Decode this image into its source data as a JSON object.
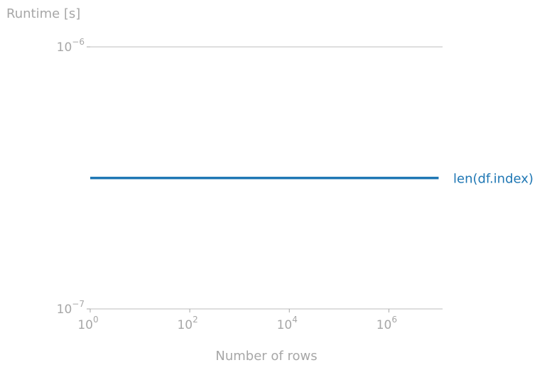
{
  "chart_data": {
    "type": "line",
    "title": "",
    "xlabel": "Number of rows",
    "ylabel": "Runtime [s]",
    "x_scale": "log",
    "y_scale": "log",
    "xlim": [
      1,
      12000000
    ],
    "ylim": [
      1e-07,
      1e-06
    ],
    "grid": "y-major",
    "legend": "inline-right",
    "x_ticks": [
      {
        "value": 1,
        "base": "10",
        "exp": "0"
      },
      {
        "value": 100,
        "base": "10",
        "exp": "2"
      },
      {
        "value": 10000,
        "base": "10",
        "exp": "4"
      },
      {
        "value": 1000000,
        "base": "10",
        "exp": "6"
      }
    ],
    "y_ticks": [
      {
        "value": 1e-06,
        "base": "10",
        "exp": "−6"
      },
      {
        "value": 1e-07,
        "base": "10",
        "exp": "−7"
      }
    ],
    "series": [
      {
        "name": "len(df.index)",
        "color": "#1f77b4",
        "x": [
          1,
          10,
          100,
          1000,
          10000,
          100000,
          1000000,
          10000000
        ],
        "y": [
          3.16e-07,
          3.16e-07,
          3.16e-07,
          3.16e-07,
          3.16e-07,
          3.16e-07,
          3.16e-07,
          3.16e-07
        ]
      }
    ]
  },
  "colors": {
    "axis": "#a7a7a7",
    "grid": "#bdbdbd"
  }
}
